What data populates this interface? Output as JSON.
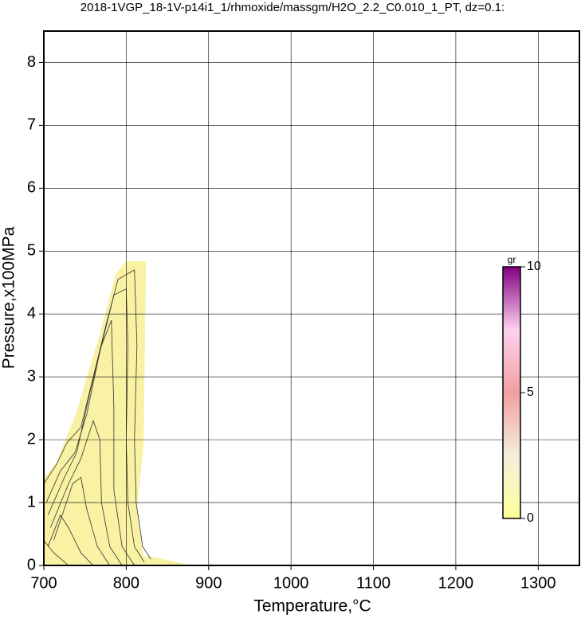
{
  "chart_data": {
    "type": "contour",
    "title": "2018-1VGP_18-1V-p14i1_1/rhmoxide/massgm/H2O_2.2_C0.010_1_PT, dz=0.1:",
    "x_label": "Temperature,°C",
    "y_label": "Pressure,x100MPa",
    "xlim": [
      700,
      1350
    ],
    "ylim": [
      0,
      8.5
    ],
    "xticks": [
      700,
      800,
      900,
      1000,
      1100,
      1200,
      1300
    ],
    "yticks": [
      0,
      1,
      2,
      3,
      4,
      5,
      6,
      7,
      8
    ],
    "grid": true,
    "region": {
      "color": "#f9f1a4",
      "x": [
        700,
        700,
        716,
        727,
        739,
        753,
        768,
        787,
        800,
        824,
        821,
        813,
        821,
        835,
        879
      ],
      "y": [
        0,
        1.39,
        1.65,
        2.03,
        2.41,
        3.04,
        3.68,
        4.63,
        4.84,
        4.84,
        1.9,
        0.89,
        0.15,
        0.13,
        0
      ]
    },
    "line_color": "#333333",
    "contours": [
      {
        "x": [
          700,
          715,
          728,
          745,
          760,
          775,
          790,
          810,
          813,
          810,
          812,
          820,
          830
        ],
        "y": [
          1.3,
          1.6,
          1.95,
          2.2,
          3.0,
          3.8,
          4.55,
          4.7,
          3.5,
          2.0,
          1.0,
          0.3,
          0.1
        ]
      },
      {
        "x": [
          703,
          720,
          738,
          752,
          768,
          785,
          800,
          802,
          800,
          802,
          810,
          822
        ],
        "y": [
          1.0,
          1.5,
          1.8,
          2.4,
          3.4,
          4.3,
          4.4,
          3.5,
          2.0,
          1.0,
          0.3,
          0.05
        ]
      },
      {
        "x": [
          705,
          725,
          740,
          755,
          770,
          782,
          785,
          785,
          795,
          810
        ],
        "y": [
          0.8,
          1.4,
          1.8,
          2.7,
          3.5,
          3.9,
          2.5,
          1.2,
          0.3,
          0
        ]
      },
      {
        "x": [
          708,
          730,
          745,
          760,
          768,
          770,
          780,
          795
        ],
        "y": [
          0.6,
          1.3,
          1.7,
          2.3,
          2.0,
          1.0,
          0.3,
          0
        ]
      },
      {
        "x": [
          712,
          735,
          745,
          752,
          765,
          780
        ],
        "y": [
          0.4,
          1.3,
          1.4,
          0.9,
          0.3,
          0
        ]
      },
      {
        "x": [
          705,
          720,
          730,
          745,
          760
        ],
        "y": [
          0.3,
          0.8,
          0.6,
          0.2,
          0
        ]
      },
      {
        "x": [
          700,
          712,
          730
        ],
        "y": [
          0.4,
          0.2,
          0
        ]
      }
    ],
    "colorbar": {
      "label": "gr",
      "lim": [
        0,
        10
      ],
      "ticks": [
        0,
        5,
        10
      ],
      "colors": [
        "#ffff99",
        "#f5eedc",
        "#f0a0a0",
        "#ffd0f0",
        "#800080"
      ]
    }
  }
}
